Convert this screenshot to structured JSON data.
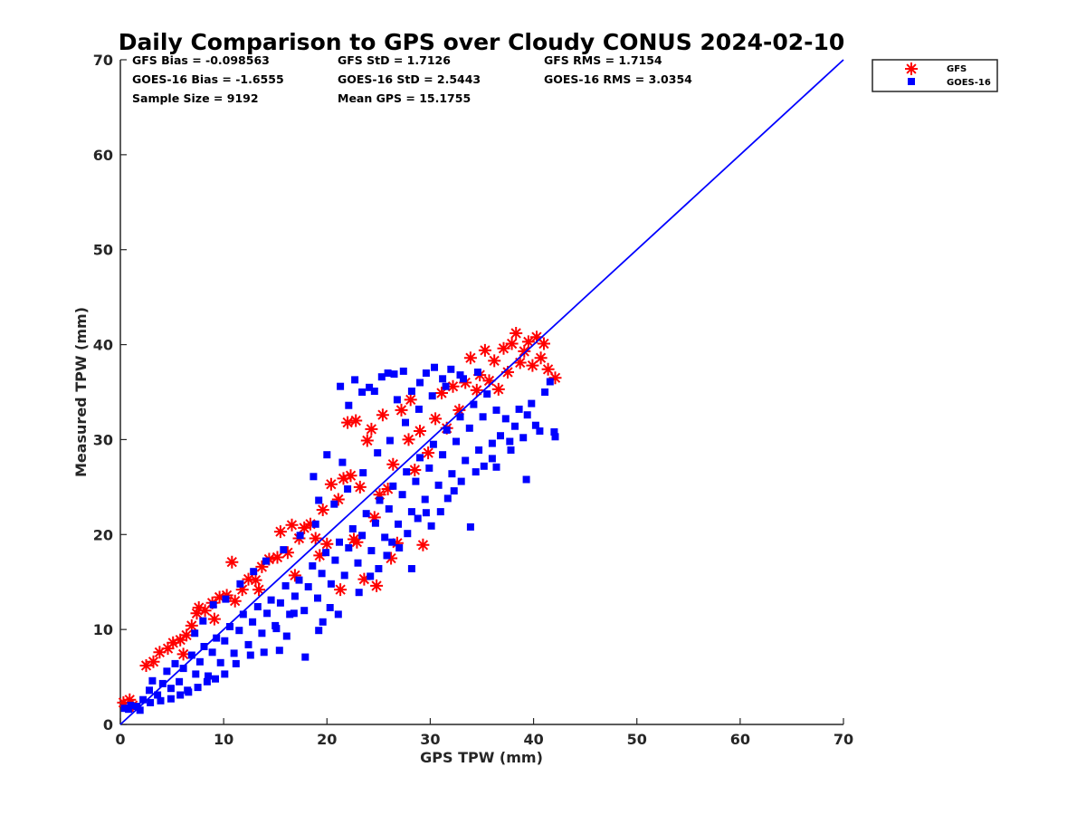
{
  "chart_data": {
    "type": "scatter",
    "title": "Daily Comparison to GPS over Cloudy CONUS 2024-02-10",
    "xlabel": "GPS TPW (mm)",
    "ylabel": "Measured TPW (mm)",
    "xlim": [
      0,
      70
    ],
    "ylim": [
      0,
      70
    ],
    "xticks": [
      "0",
      "10",
      "20",
      "30",
      "40",
      "50",
      "60",
      "70"
    ],
    "yticks": [
      "0",
      "10",
      "20",
      "30",
      "40",
      "50",
      "60",
      "70"
    ],
    "grid": false,
    "legend_position": "outside-top-right",
    "stats": {
      "gfs_bias": "GFS Bias = -0.098563",
      "gfs_std": "GFS StD = 1.7126",
      "gfs_rms": "GFS RMS = 1.7154",
      "goes_bias": "GOES-16 Bias = -1.6555",
      "goes_std": "GOES-16 StD = 2.5443",
      "goes_rms": "GOES-16 RMS = 3.0354",
      "sample_size": "Sample Size = 9192",
      "mean_gps": "Mean GPS = 15.1755"
    },
    "reference_line": {
      "x": [
        0,
        70
      ],
      "y": [
        0,
        70
      ],
      "color": "#0000ff"
    },
    "series": [
      {
        "name": "GFS",
        "marker": "asterisk",
        "color": "#ff0000",
        "points": [
          [
            0.3,
            2.3
          ],
          [
            0.9,
            2.6
          ],
          [
            1.2,
            2.0
          ],
          [
            2.5,
            6.2
          ],
          [
            3.2,
            6.6
          ],
          [
            3.8,
            7.6
          ],
          [
            4.6,
            8.0
          ],
          [
            5.1,
            8.6
          ],
          [
            5.8,
            8.9
          ],
          [
            6.4,
            9.4
          ],
          [
            6.9,
            10.4
          ],
          [
            7.4,
            11.7
          ],
          [
            7.6,
            12.3
          ],
          [
            8.2,
            12.0
          ],
          [
            8.9,
            12.8
          ],
          [
            9.6,
            13.4
          ],
          [
            10.3,
            13.6
          ],
          [
            10.8,
            17.1
          ],
          [
            11.1,
            13.0
          ],
          [
            11.8,
            14.2
          ],
          [
            12.4,
            15.3
          ],
          [
            13.1,
            15.2
          ],
          [
            13.7,
            16.6
          ],
          [
            14.4,
            17.4
          ],
          [
            15.2,
            17.6
          ],
          [
            15.5,
            20.3
          ],
          [
            16.2,
            18.1
          ],
          [
            16.6,
            21.0
          ],
          [
            17.3,
            19.6
          ],
          [
            17.8,
            20.7
          ],
          [
            18.4,
            21.1
          ],
          [
            18.9,
            19.6
          ],
          [
            19.6,
            22.6
          ],
          [
            20.0,
            19.0
          ],
          [
            20.4,
            25.3
          ],
          [
            21.1,
            23.7
          ],
          [
            21.3,
            14.2
          ],
          [
            21.6,
            25.9
          ],
          [
            22.0,
            31.8
          ],
          [
            22.3,
            26.2
          ],
          [
            22.6,
            19.5
          ],
          [
            22.8,
            32.0
          ],
          [
            23.2,
            25.0
          ],
          [
            23.6,
            15.3
          ],
          [
            23.9,
            29.9
          ],
          [
            24.3,
            31.1
          ],
          [
            24.6,
            21.8
          ],
          [
            25.1,
            24.2
          ],
          [
            25.4,
            32.6
          ],
          [
            25.9,
            24.8
          ],
          [
            26.4,
            27.4
          ],
          [
            26.8,
            19.1
          ],
          [
            27.2,
            33.1
          ],
          [
            27.9,
            30.0
          ],
          [
            28.1,
            34.2
          ],
          [
            28.5,
            26.8
          ],
          [
            29.0,
            30.9
          ],
          [
            29.3,
            18.9
          ],
          [
            29.8,
            28.6
          ],
          [
            30.5,
            32.2
          ],
          [
            31.1,
            34.9
          ],
          [
            31.6,
            31.2
          ],
          [
            32.2,
            35.6
          ],
          [
            32.8,
            33.1
          ],
          [
            33.4,
            36.0
          ],
          [
            33.9,
            38.6
          ],
          [
            34.5,
            35.2
          ],
          [
            34.8,
            36.8
          ],
          [
            35.3,
            39.4
          ],
          [
            35.7,
            36.2
          ],
          [
            36.2,
            38.3
          ],
          [
            36.6,
            35.3
          ],
          [
            37.1,
            39.6
          ],
          [
            37.5,
            37.1
          ],
          [
            37.9,
            40.1
          ],
          [
            38.3,
            41.2
          ],
          [
            38.7,
            38.1
          ],
          [
            39.1,
            39.3
          ],
          [
            39.5,
            40.3
          ],
          [
            39.9,
            37.8
          ],
          [
            40.3,
            40.8
          ],
          [
            40.7,
            38.6
          ],
          [
            41.0,
            40.1
          ],
          [
            41.4,
            37.4
          ],
          [
            42.1,
            36.5
          ],
          [
            6.1,
            7.4
          ],
          [
            9.1,
            11.1
          ],
          [
            13.4,
            14.2
          ],
          [
            16.9,
            15.7
          ],
          [
            19.3,
            17.8
          ],
          [
            22.9,
            19.2
          ],
          [
            24.8,
            14.6
          ],
          [
            26.2,
            17.5
          ]
        ]
      },
      {
        "name": "GOES-16",
        "marker": "square",
        "color": "#0000ff",
        "points": [
          [
            0.4,
            1.7
          ],
          [
            1.0,
            2.0
          ],
          [
            1.6,
            1.9
          ],
          [
            2.2,
            2.6
          ],
          [
            2.8,
            3.6
          ],
          [
            3.1,
            4.6
          ],
          [
            3.6,
            3.1
          ],
          [
            4.1,
            4.3
          ],
          [
            4.5,
            5.6
          ],
          [
            4.9,
            3.8
          ],
          [
            5.3,
            6.4
          ],
          [
            5.7,
            4.5
          ],
          [
            6.1,
            5.9
          ],
          [
            6.5,
            3.6
          ],
          [
            6.9,
            7.3
          ],
          [
            7.3,
            5.3
          ],
          [
            7.7,
            6.6
          ],
          [
            8.1,
            8.2
          ],
          [
            8.5,
            5.1
          ],
          [
            8.9,
            7.6
          ],
          [
            9.3,
            9.1
          ],
          [
            9.7,
            6.5
          ],
          [
            10.1,
            8.8
          ],
          [
            10.6,
            10.3
          ],
          [
            11.0,
            7.5
          ],
          [
            11.5,
            9.9
          ],
          [
            11.9,
            11.6
          ],
          [
            12.4,
            8.4
          ],
          [
            12.8,
            10.8
          ],
          [
            13.3,
            12.4
          ],
          [
            13.7,
            9.6
          ],
          [
            14.2,
            11.7
          ],
          [
            14.6,
            13.1
          ],
          [
            15.1,
            10.1
          ],
          [
            15.5,
            12.8
          ],
          [
            16.0,
            14.6
          ],
          [
            16.4,
            11.6
          ],
          [
            16.9,
            13.5
          ],
          [
            17.3,
            15.2
          ],
          [
            17.8,
            12.0
          ],
          [
            18.2,
            14.5
          ],
          [
            18.6,
            16.7
          ],
          [
            19.1,
            13.3
          ],
          [
            19.5,
            15.9
          ],
          [
            19.9,
            18.1
          ],
          [
            20.4,
            14.8
          ],
          [
            20.8,
            17.3
          ],
          [
            21.2,
            19.2
          ],
          [
            21.7,
            15.7
          ],
          [
            22.1,
            18.6
          ],
          [
            22.5,
            20.6
          ],
          [
            23.0,
            17.0
          ],
          [
            23.4,
            19.9
          ],
          [
            23.8,
            22.2
          ],
          [
            24.3,
            18.3
          ],
          [
            24.7,
            21.2
          ],
          [
            25.1,
            23.6
          ],
          [
            25.6,
            19.7
          ],
          [
            26.0,
            22.7
          ],
          [
            26.4,
            25.1
          ],
          [
            26.9,
            21.1
          ],
          [
            27.3,
            24.2
          ],
          [
            27.7,
            26.6
          ],
          [
            28.2,
            22.4
          ],
          [
            28.6,
            25.6
          ],
          [
            29.0,
            28.1
          ],
          [
            29.5,
            23.7
          ],
          [
            29.9,
            27.0
          ],
          [
            30.3,
            29.5
          ],
          [
            30.8,
            25.2
          ],
          [
            31.2,
            28.4
          ],
          [
            31.6,
            31.0
          ],
          [
            32.1,
            26.4
          ],
          [
            32.5,
            29.8
          ],
          [
            32.9,
            32.4
          ],
          [
            33.4,
            27.8
          ],
          [
            33.8,
            31.2
          ],
          [
            34.2,
            33.7
          ],
          [
            34.7,
            28.9
          ],
          [
            35.1,
            32.4
          ],
          [
            35.5,
            34.8
          ],
          [
            36.0,
            29.6
          ],
          [
            36.4,
            33.1
          ],
          [
            36.8,
            30.4
          ],
          [
            37.3,
            32.2
          ],
          [
            37.7,
            29.8
          ],
          [
            38.2,
            31.4
          ],
          [
            38.6,
            33.2
          ],
          [
            39.0,
            30.2
          ],
          [
            39.4,
            32.6
          ],
          [
            39.8,
            33.8
          ],
          [
            40.2,
            31.5
          ],
          [
            40.6,
            30.9
          ],
          [
            41.1,
            35.0
          ],
          [
            41.6,
            36.1
          ],
          [
            42.1,
            30.3
          ],
          [
            42.0,
            30.8
          ],
          [
            39.3,
            25.8
          ],
          [
            33.9,
            20.8
          ],
          [
            36.4,
            27.1
          ],
          [
            37.8,
            28.9
          ],
          [
            21.3,
            35.6
          ],
          [
            22.7,
            36.3
          ],
          [
            23.4,
            35.0
          ],
          [
            24.1,
            35.5
          ],
          [
            25.3,
            36.6
          ],
          [
            25.9,
            37.0
          ],
          [
            26.5,
            36.9
          ],
          [
            27.4,
            37.2
          ],
          [
            28.2,
            35.1
          ],
          [
            29.0,
            36.0
          ],
          [
            29.6,
            37.0
          ],
          [
            30.4,
            37.6
          ],
          [
            31.2,
            36.4
          ],
          [
            32.0,
            37.4
          ],
          [
            32.9,
            36.8
          ],
          [
            24.6,
            35.1
          ],
          [
            26.8,
            34.2
          ],
          [
            22.1,
            33.6
          ],
          [
            20.0,
            28.4
          ],
          [
            21.5,
            27.6
          ],
          [
            19.2,
            23.6
          ],
          [
            18.7,
            26.1
          ],
          [
            17.9,
            7.1
          ],
          [
            19.2,
            9.9
          ],
          [
            19.6,
            10.8
          ],
          [
            20.3,
            12.3
          ],
          [
            21.1,
            11.6
          ],
          [
            23.1,
            13.9
          ],
          [
            24.2,
            15.6
          ],
          [
            25.0,
            16.4
          ],
          [
            25.8,
            17.8
          ],
          [
            26.3,
            19.2
          ],
          [
            27.0,
            18.6
          ],
          [
            27.8,
            20.1
          ],
          [
            28.2,
            16.4
          ],
          [
            28.8,
            21.7
          ],
          [
            29.6,
            22.3
          ],
          [
            30.1,
            20.9
          ],
          [
            31.0,
            22.4
          ],
          [
            31.7,
            23.8
          ],
          [
            32.3,
            24.6
          ],
          [
            33.0,
            25.6
          ],
          [
            34.4,
            26.6
          ],
          [
            35.2,
            27.2
          ],
          [
            36.0,
            28.0
          ],
          [
            15.0,
            10.4
          ],
          [
            16.1,
            9.3
          ],
          [
            16.8,
            11.7
          ],
          [
            15.4,
            7.8
          ],
          [
            13.9,
            7.6
          ],
          [
            12.6,
            7.3
          ],
          [
            11.2,
            6.4
          ],
          [
            10.1,
            5.3
          ],
          [
            9.2,
            4.8
          ],
          [
            8.4,
            4.5
          ],
          [
            7.5,
            3.9
          ],
          [
            6.6,
            3.4
          ],
          [
            5.8,
            3.1
          ],
          [
            4.9,
            2.7
          ],
          [
            3.9,
            2.5
          ],
          [
            2.9,
            2.3
          ],
          [
            1.9,
            1.5
          ],
          [
            0.8,
            1.6
          ],
          [
            7.2,
            9.6
          ],
          [
            8.0,
            10.9
          ],
          [
            9.0,
            12.6
          ],
          [
            10.2,
            13.2
          ],
          [
            11.6,
            14.8
          ],
          [
            12.9,
            16.1
          ],
          [
            14.1,
            17.2
          ],
          [
            15.8,
            18.4
          ],
          [
            17.4,
            19.9
          ],
          [
            18.9,
            21.1
          ],
          [
            20.7,
            23.2
          ],
          [
            22.0,
            24.8
          ],
          [
            23.5,
            26.5
          ],
          [
            24.9,
            28.6
          ],
          [
            26.1,
            29.9
          ],
          [
            27.6,
            31.8
          ],
          [
            28.9,
            33.2
          ],
          [
            30.2,
            34.6
          ],
          [
            31.5,
            35.6
          ],
          [
            33.2,
            36.4
          ],
          [
            34.6,
            37.1
          ]
        ]
      }
    ]
  }
}
